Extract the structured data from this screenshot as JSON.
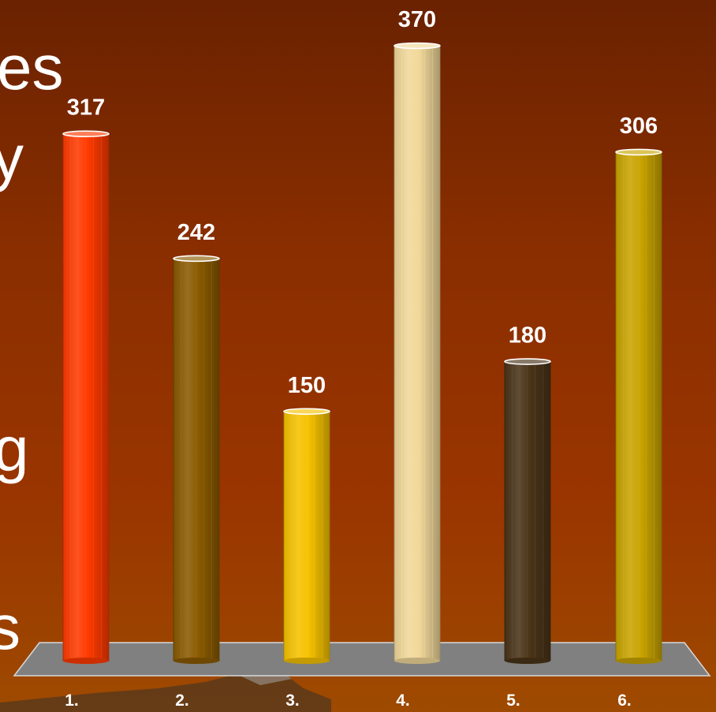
{
  "background_text": [
    "es",
    "y",
    "g",
    "s"
  ],
  "chart_data": {
    "type": "bar",
    "categories": [
      "1.",
      "2.",
      "3.",
      "4.",
      "5.",
      "6."
    ],
    "values": [
      317,
      242,
      150,
      370,
      180,
      306
    ],
    "data_labels": [
      "317",
      "242",
      "150",
      "370",
      "180",
      "306"
    ],
    "colors": [
      "#ff3a00",
      "#8a5a00",
      "#f5c200",
      "#f1d89a",
      "#4a3418",
      "#c9a400"
    ],
    "title": "",
    "xlabel": "",
    "ylabel": "",
    "ylim": [
      0,
      400
    ],
    "grid": false,
    "floor_color": "#808080"
  }
}
